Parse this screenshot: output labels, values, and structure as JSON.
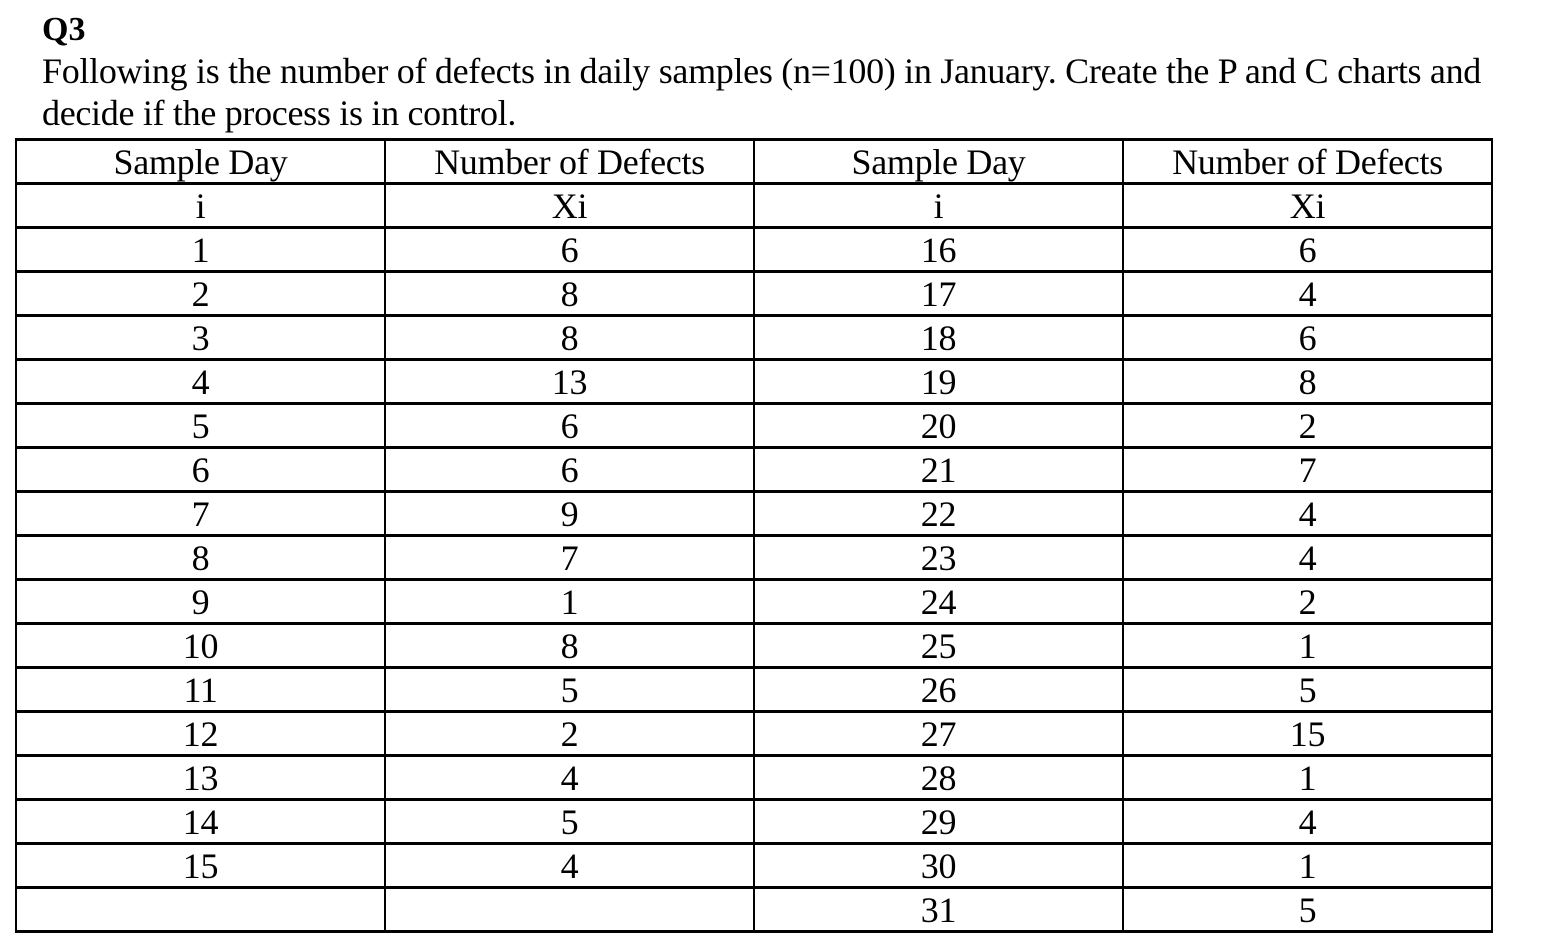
{
  "question": {
    "label": "Q3",
    "line1": "Following is the number of defects in daily samples (n=100) in January. Create the P and C charts and",
    "line2": "decide if the process is in control."
  },
  "table": {
    "headers": [
      "Sample Day",
      "Number of Defects",
      "Sample Day",
      "Number of Defects"
    ],
    "subheaders": [
      "i",
      "Xi",
      "i",
      "Xi"
    ],
    "rows": [
      [
        "1",
        "6",
        "16",
        "6"
      ],
      [
        "2",
        "8",
        "17",
        "4"
      ],
      [
        "3",
        "8",
        "18",
        "6"
      ],
      [
        "4",
        "13",
        "19",
        "8"
      ],
      [
        "5",
        "6",
        "20",
        "2"
      ],
      [
        "6",
        "6",
        "21",
        "7"
      ],
      [
        "7",
        "9",
        "22",
        "4"
      ],
      [
        "8",
        "7",
        "23",
        "4"
      ],
      [
        "9",
        "1",
        "24",
        "2"
      ],
      [
        "10",
        "8",
        "25",
        "1"
      ],
      [
        "11",
        "5",
        "26",
        "5"
      ],
      [
        "12",
        "2",
        "27",
        "15"
      ],
      [
        "13",
        "4",
        "28",
        "1"
      ],
      [
        "14",
        "5",
        "29",
        "4"
      ],
      [
        "15",
        "4",
        "30",
        "1"
      ],
      [
        "",
        "",
        "31",
        "5"
      ]
    ]
  },
  "colors": {
    "text": "#000000",
    "background": "#ffffff",
    "border": "#000000"
  }
}
